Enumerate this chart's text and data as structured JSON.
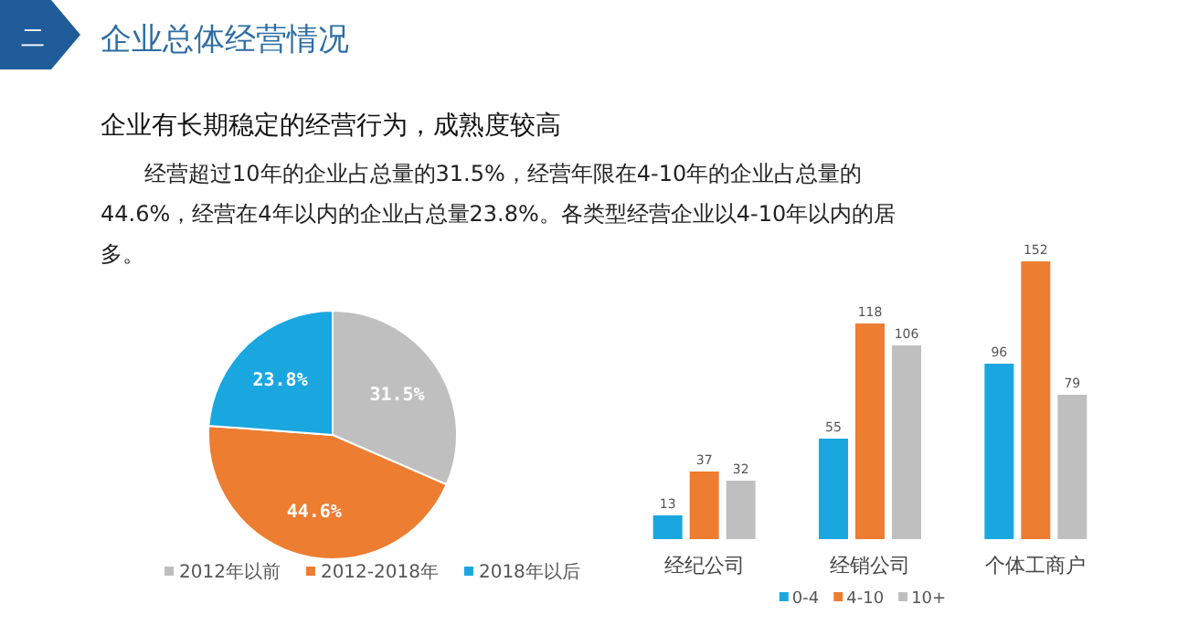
{
  "chart_data": [
    {
      "type": "pie",
      "title": "企业总体经营情况",
      "subtitle": "企业有长期稳定的经营行为，成熟度较高",
      "annotations": [
        "二",
        "经营超过10年的企业占总量的31.5%，经营年限在4-10年的企业占总量的44.6%，经营在4年以内的企业占总量23.8%。各类型经营企业以4-10年以内的居多。"
      ],
      "categories": [
        "2012年以前",
        "2012-2018年",
        "2018年以后"
      ],
      "values": [
        31.5,
        44.6,
        23.8
      ],
      "value_labels": [
        "31.5%",
        "44.6%",
        "23.8%"
      ],
      "colors": [
        "#bfbfbf",
        "#ed7d31",
        "#1aa7e0"
      ],
      "legend": "bottom"
    },
    {
      "type": "bar",
      "categories": [
        "经纪公司",
        "经销公司",
        "个体工商户"
      ],
      "series": [
        {
          "name": "0-4",
          "color": "#1aa7e0",
          "values": [
            13,
            55,
            96
          ]
        },
        {
          "name": "4-10",
          "color": "#ed7d31",
          "values": [
            37,
            118,
            152
          ]
        },
        {
          "name": "10+",
          "color": "#bfbfbf",
          "values": [
            32,
            106,
            79
          ]
        }
      ],
      "data_labels": true,
      "legend": "bottom",
      "grid": false
    }
  ]
}
